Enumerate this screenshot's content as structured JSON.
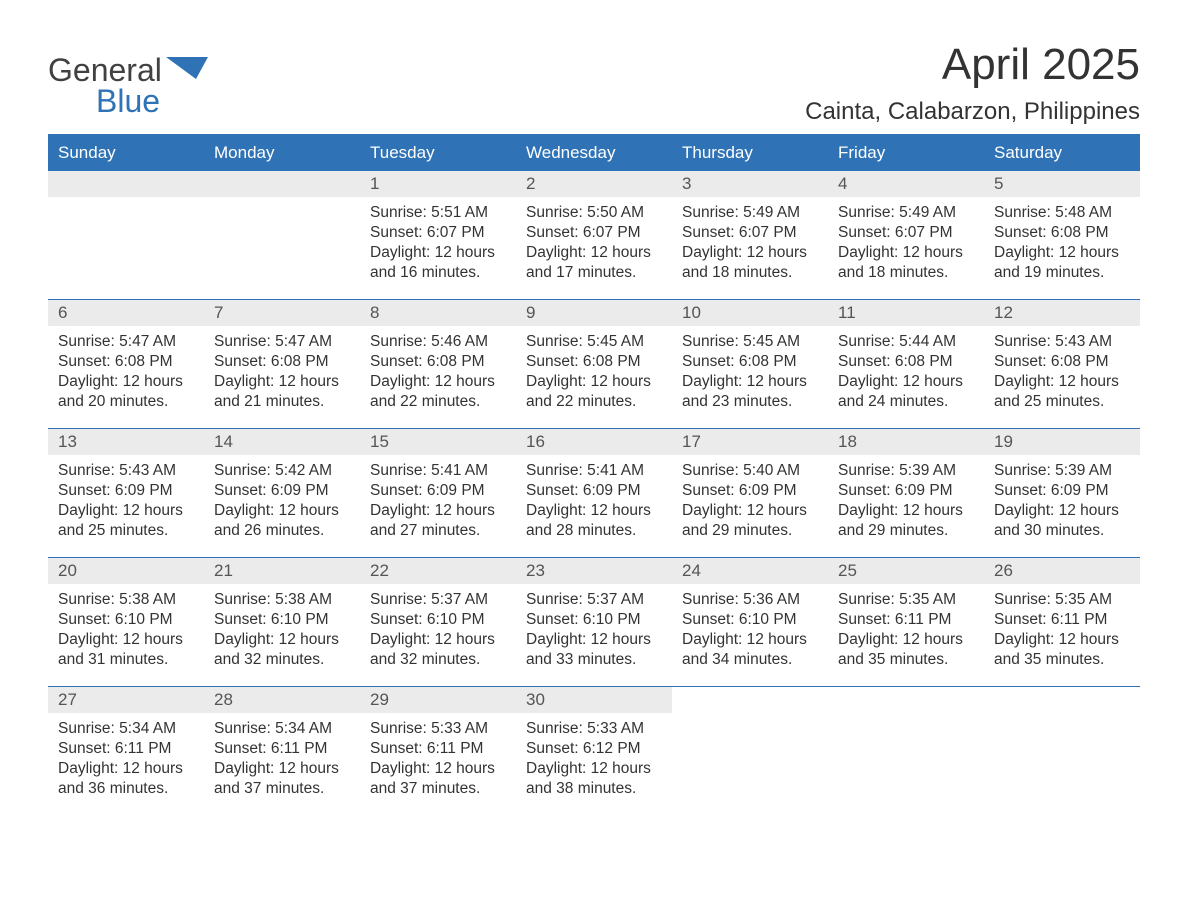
{
  "logo": {
    "general": "General",
    "blue": "Blue",
    "flag_color": "#2f73b6"
  },
  "header": {
    "month_title": "April 2025",
    "location": "Cainta, Calabarzon, Philippines"
  },
  "colors": {
    "header_bg": "#2f73b6",
    "header_text": "#ffffff",
    "daynum_bg": "#ebebeb",
    "text": "#333333",
    "row_border": "#2f73b6"
  },
  "day_headers": [
    "Sunday",
    "Monday",
    "Tuesday",
    "Wednesday",
    "Thursday",
    "Friday",
    "Saturday"
  ],
  "weeks": [
    [
      {
        "n": "",
        "sr": "",
        "ss": "",
        "dl": ""
      },
      {
        "n": "",
        "sr": "",
        "ss": "",
        "dl": ""
      },
      {
        "n": "1",
        "sr": "5:51 AM",
        "ss": "6:07 PM",
        "dl": "12 hours and 16 minutes."
      },
      {
        "n": "2",
        "sr": "5:50 AM",
        "ss": "6:07 PM",
        "dl": "12 hours and 17 minutes."
      },
      {
        "n": "3",
        "sr": "5:49 AM",
        "ss": "6:07 PM",
        "dl": "12 hours and 18 minutes."
      },
      {
        "n": "4",
        "sr": "5:49 AM",
        "ss": "6:07 PM",
        "dl": "12 hours and 18 minutes."
      },
      {
        "n": "5",
        "sr": "5:48 AM",
        "ss": "6:08 PM",
        "dl": "12 hours and 19 minutes."
      }
    ],
    [
      {
        "n": "6",
        "sr": "5:47 AM",
        "ss": "6:08 PM",
        "dl": "12 hours and 20 minutes."
      },
      {
        "n": "7",
        "sr": "5:47 AM",
        "ss": "6:08 PM",
        "dl": "12 hours and 21 minutes."
      },
      {
        "n": "8",
        "sr": "5:46 AM",
        "ss": "6:08 PM",
        "dl": "12 hours and 22 minutes."
      },
      {
        "n": "9",
        "sr": "5:45 AM",
        "ss": "6:08 PM",
        "dl": "12 hours and 22 minutes."
      },
      {
        "n": "10",
        "sr": "5:45 AM",
        "ss": "6:08 PM",
        "dl": "12 hours and 23 minutes."
      },
      {
        "n": "11",
        "sr": "5:44 AM",
        "ss": "6:08 PM",
        "dl": "12 hours and 24 minutes."
      },
      {
        "n": "12",
        "sr": "5:43 AM",
        "ss": "6:08 PM",
        "dl": "12 hours and 25 minutes."
      }
    ],
    [
      {
        "n": "13",
        "sr": "5:43 AM",
        "ss": "6:09 PM",
        "dl": "12 hours and 25 minutes."
      },
      {
        "n": "14",
        "sr": "5:42 AM",
        "ss": "6:09 PM",
        "dl": "12 hours and 26 minutes."
      },
      {
        "n": "15",
        "sr": "5:41 AM",
        "ss": "6:09 PM",
        "dl": "12 hours and 27 minutes."
      },
      {
        "n": "16",
        "sr": "5:41 AM",
        "ss": "6:09 PM",
        "dl": "12 hours and 28 minutes."
      },
      {
        "n": "17",
        "sr": "5:40 AM",
        "ss": "6:09 PM",
        "dl": "12 hours and 29 minutes."
      },
      {
        "n": "18",
        "sr": "5:39 AM",
        "ss": "6:09 PM",
        "dl": "12 hours and 29 minutes."
      },
      {
        "n": "19",
        "sr": "5:39 AM",
        "ss": "6:09 PM",
        "dl": "12 hours and 30 minutes."
      }
    ],
    [
      {
        "n": "20",
        "sr": "5:38 AM",
        "ss": "6:10 PM",
        "dl": "12 hours and 31 minutes."
      },
      {
        "n": "21",
        "sr": "5:38 AM",
        "ss": "6:10 PM",
        "dl": "12 hours and 32 minutes."
      },
      {
        "n": "22",
        "sr": "5:37 AM",
        "ss": "6:10 PM",
        "dl": "12 hours and 32 minutes."
      },
      {
        "n": "23",
        "sr": "5:37 AM",
        "ss": "6:10 PM",
        "dl": "12 hours and 33 minutes."
      },
      {
        "n": "24",
        "sr": "5:36 AM",
        "ss": "6:10 PM",
        "dl": "12 hours and 34 minutes."
      },
      {
        "n": "25",
        "sr": "5:35 AM",
        "ss": "6:11 PM",
        "dl": "12 hours and 35 minutes."
      },
      {
        "n": "26",
        "sr": "5:35 AM",
        "ss": "6:11 PM",
        "dl": "12 hours and 35 minutes."
      }
    ],
    [
      {
        "n": "27",
        "sr": "5:34 AM",
        "ss": "6:11 PM",
        "dl": "12 hours and 36 minutes."
      },
      {
        "n": "28",
        "sr": "5:34 AM",
        "ss": "6:11 PM",
        "dl": "12 hours and 37 minutes."
      },
      {
        "n": "29",
        "sr": "5:33 AM",
        "ss": "6:11 PM",
        "dl": "12 hours and 37 minutes."
      },
      {
        "n": "30",
        "sr": "5:33 AM",
        "ss": "6:12 PM",
        "dl": "12 hours and 38 minutes."
      },
      {
        "n": "",
        "sr": "",
        "ss": "",
        "dl": ""
      },
      {
        "n": "",
        "sr": "",
        "ss": "",
        "dl": ""
      },
      {
        "n": "",
        "sr": "",
        "ss": "",
        "dl": ""
      }
    ]
  ],
  "labels": {
    "sunrise_prefix": "Sunrise: ",
    "sunset_prefix": "Sunset: ",
    "daylight_prefix": "Daylight: "
  }
}
